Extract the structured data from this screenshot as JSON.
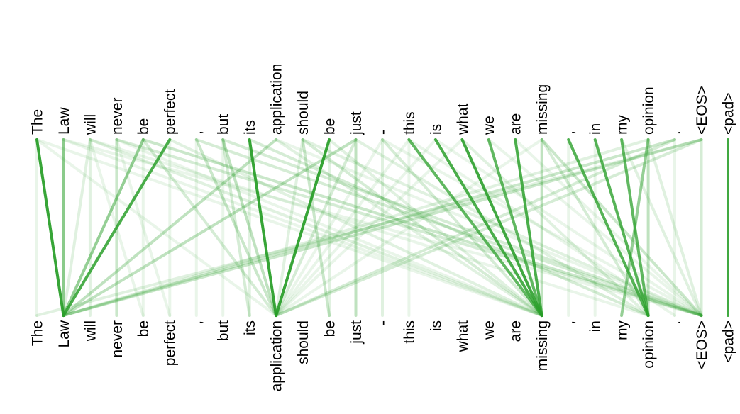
{
  "tokens": [
    "The",
    "Law",
    "will",
    "never",
    "be",
    "perfect",
    ",",
    "but",
    "its",
    "application",
    "should",
    "be",
    "just",
    "-",
    "this",
    "is",
    "what",
    "we",
    "are",
    "missing",
    ",",
    "in",
    "my",
    "opinion",
    ".",
    "<EOS>",
    "<pad>"
  ],
  "colors": {
    "link": "#2ca02c"
  },
  "links": [
    [
      0,
      1,
      0.95
    ],
    [
      1,
      1,
      0.55
    ],
    [
      3,
      3,
      0.25
    ],
    [
      4,
      1,
      0.5
    ],
    [
      5,
      1,
      0.85
    ],
    [
      8,
      9,
      0.95
    ],
    [
      11,
      9,
      0.95
    ],
    [
      12,
      12,
      0.3
    ],
    [
      12,
      1,
      0.3
    ],
    [
      9,
      1,
      0.3
    ],
    [
      26,
      26,
      0.9
    ],
    [
      23,
      22,
      0.5
    ],
    [
      24,
      1,
      0.25
    ],
    [
      25,
      1,
      0.25
    ],
    [
      24,
      9,
      0.2
    ],
    [
      14,
      19,
      0.75
    ],
    [
      15,
      19,
      0.85
    ],
    [
      16,
      19,
      0.9
    ],
    [
      17,
      19,
      0.75
    ],
    [
      18,
      19,
      0.85
    ],
    [
      21,
      23,
      0.8
    ],
    [
      22,
      23,
      0.75
    ],
    [
      20,
      23,
      0.8
    ],
    [
      23,
      23,
      0.3
    ],
    [
      19,
      19,
      0.3
    ],
    [
      0,
      0,
      0.1
    ],
    [
      2,
      2,
      0.15
    ],
    [
      6,
      9,
      0.25
    ],
    [
      7,
      9,
      0.3
    ],
    [
      7,
      8,
      0.2
    ],
    [
      4,
      9,
      0.2
    ],
    [
      10,
      11,
      0.25
    ],
    [
      10,
      9,
      0.15
    ],
    [
      8,
      8,
      0.15
    ],
    [
      2,
      1,
      0.15
    ],
    [
      5,
      5,
      0.1
    ],
    [
      12,
      9,
      0.2
    ],
    [
      13,
      13,
      0.15
    ],
    [
      14,
      14,
      0.1
    ],
    [
      13,
      19,
      0.2
    ],
    [
      4,
      25,
      0.25
    ],
    [
      6,
      25,
      0.2
    ],
    [
      7,
      25,
      0.2
    ],
    [
      3,
      25,
      0.2
    ],
    [
      2,
      19,
      0.15
    ],
    [
      9,
      19,
      0.15
    ],
    [
      10,
      19,
      0.2
    ],
    [
      11,
      19,
      0.15
    ],
    [
      0,
      19,
      0.1
    ],
    [
      1,
      25,
      0.1
    ],
    [
      5,
      19,
      0.15
    ],
    [
      8,
      23,
      0.2
    ],
    [
      10,
      25,
      0.15
    ],
    [
      12,
      23,
      0.15
    ],
    [
      13,
      25,
      0.1
    ],
    [
      14,
      24,
      0.1
    ],
    [
      17,
      25,
      0.1
    ],
    [
      18,
      25,
      0.1
    ],
    [
      19,
      23,
      0.2
    ],
    [
      16,
      23,
      0.15
    ],
    [
      15,
      25,
      0.1
    ],
    [
      9,
      25,
      0.1
    ],
    [
      2,
      23,
      0.1
    ],
    [
      3,
      19,
      0.1
    ],
    [
      19,
      25,
      0.25
    ],
    [
      20,
      20,
      0.1
    ],
    [
      21,
      21,
      0.1
    ],
    [
      22,
      25,
      0.15
    ],
    [
      23,
      25,
      0.15
    ],
    [
      24,
      24,
      0.1
    ],
    [
      25,
      25,
      0.2
    ],
    [
      25,
      0,
      0.15
    ],
    [
      25,
      9,
      0.2
    ],
    [
      19,
      9,
      0.1
    ],
    [
      23,
      1,
      0.15
    ],
    [
      2,
      4,
      0.1
    ],
    [
      3,
      5,
      0.1
    ],
    [
      6,
      6,
      0.1
    ],
    [
      7,
      7,
      0.1
    ],
    [
      11,
      11,
      0.15
    ],
    [
      0,
      9,
      0.1
    ],
    [
      1,
      19,
      0.1
    ],
    [
      4,
      4,
      0.1
    ],
    [
      13,
      9,
      0.1
    ],
    [
      14,
      9,
      0.1
    ],
    [
      15,
      9,
      0.1
    ],
    [
      16,
      9,
      0.1
    ]
  ]
}
